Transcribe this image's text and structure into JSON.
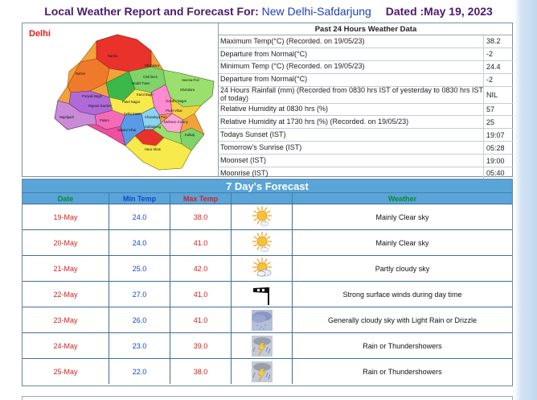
{
  "header": {
    "prefix": "Local Weather Report and Forecast For:",
    "station": "New Delhi-Safdarjung",
    "dated": "Dated :May 19, 2023"
  },
  "map": {
    "region_label": "Delhi",
    "districts": [
      "Narela",
      "Rohini",
      "Shahdara",
      "Civil lines",
      "Model Town",
      "Seema Puri",
      "Shahdara",
      "Punjabi Bagh",
      "Rajouri Garden",
      "Patel Nagar",
      "Karol Bagh",
      "Gandhi Nagar",
      "Preet Vihar",
      "Najafgarh",
      "Palam",
      "Delhi Cantt",
      "Chanakya Puri",
      "Vasant Vihar",
      "Safdarjung",
      "Defence Colony",
      "Kalkaji",
      "Hauz khas"
    ],
    "highlight_color": "#e8322b"
  },
  "past24": {
    "title": "Past 24 Hours Weather Data",
    "rows": [
      {
        "label": "Maximum Temp(°C) (Recorded. on 19/05/23)",
        "value": "38.2"
      },
      {
        "label": "Departure from Normal(°C)",
        "value": "-2"
      },
      {
        "label": "Minimum Temp (°C) (Recorded. on 19/05/23)",
        "value": "24.4"
      },
      {
        "label": "Departure from Normal(°C)",
        "value": "-2"
      },
      {
        "label": "24 Hours Rainfall (mm) (Recorded from 0830 hrs IST of yesterday to 0830 hrs IST of today)",
        "value": "NIL",
        "tall": true
      },
      {
        "label": "Relative Humidity at 0830 hrs (%)",
        "value": "57"
      },
      {
        "label": "Relative Humidity at 1730 hrs (%) (Recorded. on 19/05/23)",
        "value": "25"
      },
      {
        "label": "Todays Sunset (IST)",
        "value": "19:07"
      },
      {
        "label": "Tomorrow's Sunrise (IST)",
        "value": "05:28"
      },
      {
        "label": "Moonset (IST)",
        "value": "19:00"
      },
      {
        "label": "Moonrise (IST)",
        "value": "05:40"
      }
    ]
  },
  "forecast": {
    "title": "7 Day's Forecast",
    "columns": {
      "date": "Date",
      "min": "Min Temp",
      "max": "Max Temp",
      "weather": "Weather"
    },
    "rows": [
      {
        "date": "19-May",
        "min": "24.0",
        "max": "38.0",
        "icon": "sun-partly-icon",
        "weather": "Mainly Clear sky"
      },
      {
        "date": "20-May",
        "min": "24.0",
        "max": "41.0",
        "icon": "sun-partly-icon",
        "weather": "Mainly Clear sky"
      },
      {
        "date": "21-May",
        "min": "25.0",
        "max": "42.0",
        "icon": "partly-cloudy-icon",
        "weather": "Partly cloudy sky"
      },
      {
        "date": "22-May",
        "min": "27.0",
        "max": "41.0",
        "icon": "windsock-icon",
        "weather": "Strong surface winds during day time"
      },
      {
        "date": "23-May",
        "min": "26.0",
        "max": "41.0",
        "icon": "cloud-drizzle-icon",
        "weather": "Generally cloudy sky with Light Rain or Drizzle"
      },
      {
        "date": "24-May",
        "min": "23.0",
        "max": "39.0",
        "icon": "thunder-rain-icon",
        "weather": "Rain or Thundershowers"
      },
      {
        "date": "25-May",
        "min": "22.0",
        "max": "38.0",
        "icon": "thunder-rain-icon",
        "weather": "Rain or Thundershowers"
      }
    ]
  }
}
